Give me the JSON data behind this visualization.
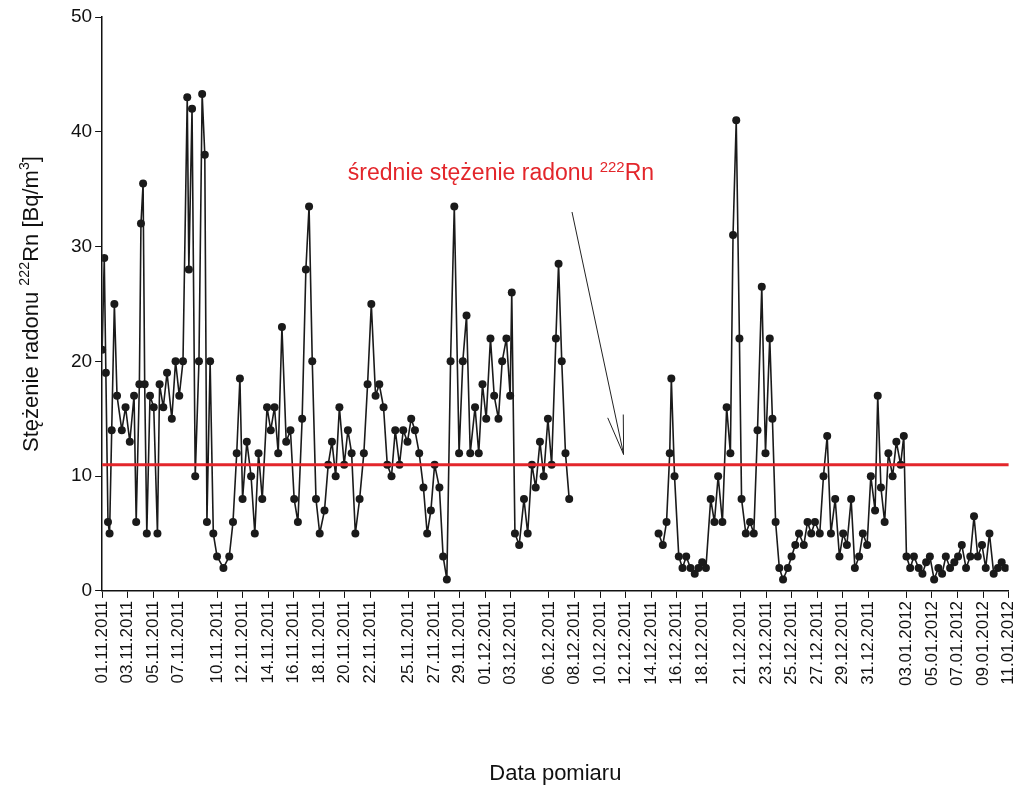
{
  "chart_data": {
    "type": "line",
    "xlabel": "Data pomiaru",
    "ylabel": "Stężenie radonu $^{222}$Rn [Bq/m$^{3}$]",
    "xlim": [
      "2011-11-01",
      "2012-01-11"
    ],
    "ylim": [
      0,
      50
    ],
    "yticks": [
      0,
      10,
      20,
      30,
      40,
      50
    ],
    "xticks": [
      {
        "value": "2011-11-01",
        "label": "01.11.2011"
      },
      {
        "value": "2011-11-03",
        "label": "03.11.2011"
      },
      {
        "value": "2011-11-05",
        "label": "05.11.2011"
      },
      {
        "value": "2011-11-07",
        "label": "07.11.2011"
      },
      {
        "value": "2011-11-10",
        "label": "10.11.2011"
      },
      {
        "value": "2011-11-12",
        "label": "12.11.2011"
      },
      {
        "value": "2011-11-14",
        "label": "14.11.2011"
      },
      {
        "value": "2011-11-16",
        "label": "16.11.2011"
      },
      {
        "value": "2011-11-18",
        "label": "18.11.2011"
      },
      {
        "value": "2011-11-20",
        "label": "20.11.2011"
      },
      {
        "value": "2011-11-22",
        "label": "22.11.2011"
      },
      {
        "value": "2011-11-25",
        "label": "25.11.2011"
      },
      {
        "value": "2011-11-27",
        "label": "27.11.2011"
      },
      {
        "value": "2011-11-29",
        "label": "29.11.2011"
      },
      {
        "value": "2011-12-01",
        "label": "01.12.2011"
      },
      {
        "value": "2011-12-03",
        "label": "03.12.2011"
      },
      {
        "value": "2011-12-06",
        "label": "06.12.2011"
      },
      {
        "value": "2011-12-08",
        "label": "08.12.2011"
      },
      {
        "value": "2011-12-10",
        "label": "10.12.2011"
      },
      {
        "value": "2011-12-12",
        "label": "12.12.2011"
      },
      {
        "value": "2011-12-14",
        "label": "14.12.2011"
      },
      {
        "value": "2011-12-16",
        "label": "16.12.2011"
      },
      {
        "value": "2011-12-18",
        "label": "18.12.2011"
      },
      {
        "value": "2011-12-21",
        "label": "21.12.2011"
      },
      {
        "value": "2011-12-23",
        "label": "23.12.2011"
      },
      {
        "value": "2011-12-25",
        "label": "25.12.2011"
      },
      {
        "value": "2011-12-27",
        "label": "27.12.2011"
      },
      {
        "value": "2011-12-29",
        "label": "29.12.2011"
      },
      {
        "value": "2011-12-31",
        "label": "31.12.2011"
      },
      {
        "value": "2012-01-03",
        "label": "03.01.2012"
      },
      {
        "value": "2012-01-05",
        "label": "05.01.2012"
      },
      {
        "value": "2012-01-07",
        "label": "07.01.2012"
      },
      {
        "value": "2012-01-09",
        "label": "09.01.2012"
      },
      {
        "value": "2012-01-11",
        "label": "11.01.2012"
      }
    ],
    "grid": false,
    "legend": false,
    "marker": "circle",
    "line_style": "solid",
    "ref_lines": [
      {
        "axis": "y",
        "value": 11,
        "label": "średnie stężenie radonu $^{222}$Rn",
        "color": "#e3262b"
      }
    ],
    "series": [
      {
        "color": "#1a1a1a",
        "x": [
          "2011-11-01T00:00",
          "2011-11-01T04:00",
          "2011-11-01T07:00",
          "2011-11-01T11:00",
          "2011-11-01T14:00",
          "2011-11-01T18:00",
          "2011-11-01T23:00",
          "2011-11-02T04:00",
          "2011-11-02T13:00",
          "2011-11-02T20:00",
          "2011-11-03T04:00",
          "2011-11-03T12:00",
          "2011-11-03T16:00",
          "2011-11-03T22:00",
          "2011-11-04T01:00",
          "2011-11-04T05:00",
          "2011-11-04T08:00",
          "2011-11-04T12:00",
          "2011-11-04T18:00",
          "2011-11-05T01:00",
          "2011-11-05T08:00",
          "2011-11-05T12:00",
          "2011-11-05T19:00",
          "2011-11-06T02:00",
          "2011-11-06T11:00",
          "2011-11-06T18:00",
          "2011-11-07T01:00",
          "2011-11-07T08:00",
          "2011-11-07T16:00",
          "2011-11-07T19:00",
          "2011-11-08T01:00",
          "2011-11-08T07:00",
          "2011-11-08T14:00",
          "2011-11-08T20:00",
          "2011-11-09T01:00",
          "2011-11-09T05:00",
          "2011-11-09T11:00",
          "2011-11-09T17:00",
          "2011-11-10T00:00",
          "2011-11-10T12:00",
          "2011-11-10T23:00",
          "2011-11-11T06:00",
          "2011-11-11T13:00",
          "2011-11-11T19:00",
          "2011-11-12T00:00",
          "2011-11-12T08:00",
          "2011-11-12T16:00",
          "2011-11-12T23:00",
          "2011-11-13T06:00",
          "2011-11-13T13:00",
          "2011-11-13T22:00",
          "2011-11-14T05:00",
          "2011-11-14T12:00",
          "2011-11-14T19:00",
          "2011-11-15T02:00",
          "2011-11-15T10:00",
          "2011-11-15T18:00",
          "2011-11-16T01:00",
          "2011-11-16T08:00",
          "2011-11-16T16:00",
          "2011-11-16T23:00",
          "2011-11-17T05:00",
          "2011-11-17T11:00",
          "2011-11-17T18:00",
          "2011-11-18T01:00",
          "2011-11-18T10:00",
          "2011-11-18T17:00",
          "2011-11-19T00:00",
          "2011-11-19T07:00",
          "2011-11-19T14:00",
          "2011-11-19T23:00",
          "2011-11-20T06:00",
          "2011-11-20T13:00",
          "2011-11-20T20:00",
          "2011-11-21T04:00",
          "2011-11-21T12:00",
          "2011-11-21T19:00",
          "2011-11-22T02:00",
          "2011-11-22T10:00",
          "2011-11-22T17:00",
          "2011-11-23T01:00",
          "2011-11-23T08:00",
          "2011-11-23T16:00",
          "2011-11-23T23:00",
          "2011-11-24T07:00",
          "2011-11-24T14:00",
          "2011-11-24T22:00",
          "2011-11-25T05:00",
          "2011-11-25T12:00",
          "2011-11-25T20:00",
          "2011-11-26T04:00",
          "2011-11-26T11:00",
          "2011-11-26T18:00",
          "2011-11-27T01:00",
          "2011-11-27T10:00",
          "2011-11-27T17:00",
          "2011-11-28T00:00",
          "2011-11-28T07:00",
          "2011-11-28T14:00",
          "2011-11-28T23:00",
          "2011-11-29T06:00",
          "2011-11-29T13:00",
          "2011-11-29T20:00",
          "2011-11-30T05:00",
          "2011-11-30T12:00",
          "2011-11-30T19:00",
          "2011-12-01T02:00",
          "2011-12-01T10:00",
          "2011-12-01T17:00",
          "2011-12-02T01:00",
          "2011-12-02T08:00",
          "2011-12-02T16:00",
          "2011-12-02T23:00",
          "2011-12-03T02:00",
          "2011-12-03T08:00",
          "2011-12-03T16:00",
          "2011-12-04T01:00",
          "2011-12-04T08:00",
          "2011-12-04T16:00",
          "2011-12-04T23:00",
          "2011-12-05T07:00",
          "2011-12-05T14:00",
          "2011-12-05T22:00",
          "2011-12-06T05:00",
          "2011-12-06T13:00",
          "2011-12-06T18:00",
          "2011-12-07T00:00",
          "2011-12-07T07:00",
          "2011-12-07T14:00",
          "2011-12-11T00:00",
          "2011-12-14T14:00",
          "2011-12-14T22:00",
          "2011-12-15T05:00",
          "2011-12-15T11:00",
          "2011-12-15T14:00",
          "2011-12-15T20:00",
          "2011-12-16T04:00",
          "2011-12-16T11:00",
          "2011-12-16T18:00",
          "2011-12-17T02:00",
          "2011-12-17T10:00",
          "2011-12-17T17:00",
          "2011-12-18T00:00",
          "2011-12-18T07:00",
          "2011-12-18T16:00",
          "2011-12-18T23:00",
          "2011-12-19T06:00",
          "2011-12-19T14:00",
          "2011-12-19T22:00",
          "2011-12-20T05:00",
          "2011-12-20T10:00",
          "2011-12-20T16:00",
          "2011-12-20T22:00",
          "2011-12-21T02:00",
          "2011-12-21T10:00",
          "2011-12-21T18:00",
          "2011-12-22T01:00",
          "2011-12-22T08:00",
          "2011-12-22T16:00",
          "2011-12-22T23:00",
          "2011-12-23T07:00",
          "2011-12-23T12:00",
          "2011-12-23T18:00",
          "2011-12-24T01:00",
          "2011-12-24T08:00",
          "2011-12-24T17:00",
          "2011-12-25T00:00",
          "2011-12-25T07:00",
          "2011-12-25T14:00",
          "2011-12-25T23:00",
          "2011-12-26T06:00",
          "2011-12-26T13:00",
          "2011-12-26T20:00",
          "2011-12-27T05:00",
          "2011-12-27T12:00",
          "2011-12-27T19:00",
          "2011-12-28T02:00",
          "2011-12-28T10:00",
          "2011-12-28T18:00",
          "2011-12-29T01:00",
          "2011-12-29T08:00",
          "2011-12-29T16:00",
          "2011-12-29T23:00",
          "2011-12-30T07:00",
          "2011-12-30T14:00",
          "2011-12-30T22:00",
          "2011-12-31T05:00",
          "2011-12-31T13:00",
          "2011-12-31T18:00",
          "2012-01-01T00:00",
          "2012-01-01T07:00",
          "2012-01-01T14:00",
          "2012-01-01T22:00",
          "2012-01-02T05:00",
          "2012-01-02T13:00",
          "2012-01-02T19:00",
          "2012-01-03T00:00",
          "2012-01-03T07:00",
          "2012-01-03T14:00",
          "2012-01-03T23:00",
          "2012-01-04T06:00",
          "2012-01-04T13:00",
          "2012-01-04T20:00",
          "2012-01-05T04:00",
          "2012-01-05T12:00",
          "2012-01-05T19:00",
          "2012-01-06T02:00",
          "2012-01-06T10:00",
          "2012-01-06T18:00",
          "2012-01-07T01:00",
          "2012-01-07T08:00",
          "2012-01-07T16:00",
          "2012-01-08T00:00",
          "2012-01-08T07:00",
          "2012-01-08T14:00",
          "2012-01-08T22:00",
          "2012-01-09T05:00",
          "2012-01-09T12:00",
          "2012-01-09T20:00",
          "2012-01-10T04:00",
          "2012-01-10T11:00",
          "2012-01-10T18:00"
        ],
        "values": [
          21,
          29,
          19,
          6,
          5,
          14,
          25,
          17,
          14,
          16,
          13,
          17,
          6,
          18,
          32,
          35.5,
          18,
          5,
          17,
          16,
          5,
          18,
          16,
          19,
          15,
          20,
          17,
          20,
          43,
          28,
          42,
          10,
          20,
          43.3,
          38,
          6,
          20,
          5,
          3,
          2,
          3,
          6,
          12,
          18.5,
          8,
          13,
          10,
          5,
          12,
          8,
          16,
          14,
          16,
          12,
          23,
          13,
          14,
          8,
          6,
          15,
          28,
          33.5,
          20,
          8,
          5,
          7,
          11,
          13,
          10,
          16,
          11,
          14,
          12,
          5,
          8,
          12,
          18,
          25,
          17,
          18,
          16,
          11,
          10,
          14,
          11,
          14,
          13,
          15,
          14,
          12,
          9,
          5,
          7,
          11,
          9,
          3,
          1,
          20,
          33.5,
          12,
          20,
          24,
          12,
          16,
          12,
          18,
          15,
          22,
          17,
          15,
          20,
          22,
          17,
          26,
          5,
          4,
          8,
          5,
          11,
          9,
          13,
          10,
          15,
          11,
          22,
          28.5,
          20,
          12,
          8,
          null,
          5,
          4,
          6,
          12,
          18.5,
          10,
          3,
          2,
          3,
          2,
          1.5,
          2,
          2.5,
          2,
          8,
          6,
          10,
          6,
          16,
          12,
          31,
          41,
          22,
          8,
          5,
          6,
          5,
          14,
          26.5,
          12,
          22,
          15,
          6,
          2,
          1,
          2,
          3,
          4,
          5,
          4,
          6,
          5,
          6,
          5,
          10,
          13.5,
          5,
          8,
          3,
          5,
          4,
          8,
          2,
          3,
          5,
          4,
          10,
          7,
          17,
          9,
          6,
          12,
          10,
          13,
          11,
          13.5,
          3,
          2,
          3,
          2,
          1.5,
          2.5,
          3,
          1,
          2,
          1.5,
          3,
          2,
          2.5,
          3,
          4,
          2,
          3,
          6.5,
          3,
          4,
          2,
          5,
          1.5,
          2,
          2.5,
          2
        ]
      }
    ]
  }
}
